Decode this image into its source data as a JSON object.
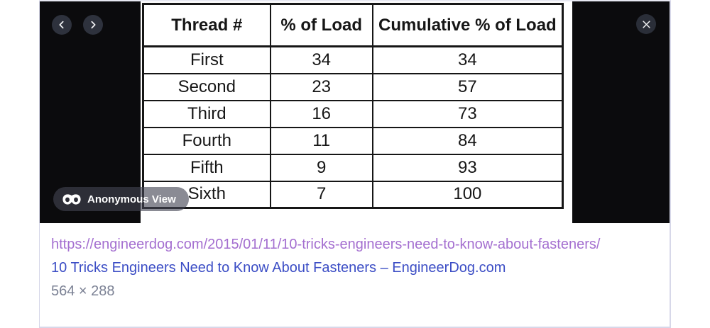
{
  "viewer": {
    "anonymous_view_label": "Anonymous View"
  },
  "image_table": {
    "headers": [
      "Thread #",
      "% of Load",
      "Cumulative % of Load"
    ],
    "col_widths_pct": [
      30.3,
      24.4,
      45.3
    ],
    "rows": [
      [
        "First",
        "34",
        "34"
      ],
      [
        "Second",
        "23",
        "57"
      ],
      [
        "Third",
        "16",
        "73"
      ],
      [
        "Fourth",
        "11",
        "84"
      ],
      [
        "Fifth",
        "9",
        "93"
      ],
      [
        "Sixth",
        "7",
        "100"
      ]
    ]
  },
  "result": {
    "url": "https://engineerdog.com/2015/01/11/10-tricks-engineers-need-to-know-about-fasteners/",
    "title": "10 Tricks Engineers Need to Know About Fasteners – EngineerDog.com",
    "dimensions": "564 × 288"
  },
  "colors": {
    "url_purple": "#a46fd0",
    "title_blue": "#3b4dc5",
    "dimensions_gray": "#7b8194",
    "panel_black": "#0b0b0d",
    "card_border": "#d7d8e9"
  }
}
